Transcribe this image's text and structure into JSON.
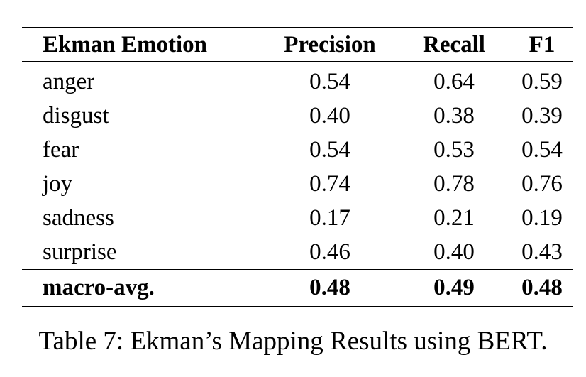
{
  "table": {
    "headers": [
      "Ekman Emotion",
      "Precision",
      "Recall",
      "F1"
    ],
    "rows": [
      [
        "anger",
        "0.54",
        "0.64",
        "0.59"
      ],
      [
        "disgust",
        "0.40",
        "0.38",
        "0.39"
      ],
      [
        "fear",
        "0.54",
        "0.53",
        "0.54"
      ],
      [
        "joy",
        "0.74",
        "0.78",
        "0.76"
      ],
      [
        "sadness",
        "0.17",
        "0.21",
        "0.19"
      ],
      [
        "surprise",
        "0.46",
        "0.40",
        "0.43"
      ]
    ],
    "footer": [
      "macro-avg.",
      "0.48",
      "0.49",
      "0.48"
    ]
  },
  "caption": "Table 7: Ekman’s Mapping Results using BERT."
}
